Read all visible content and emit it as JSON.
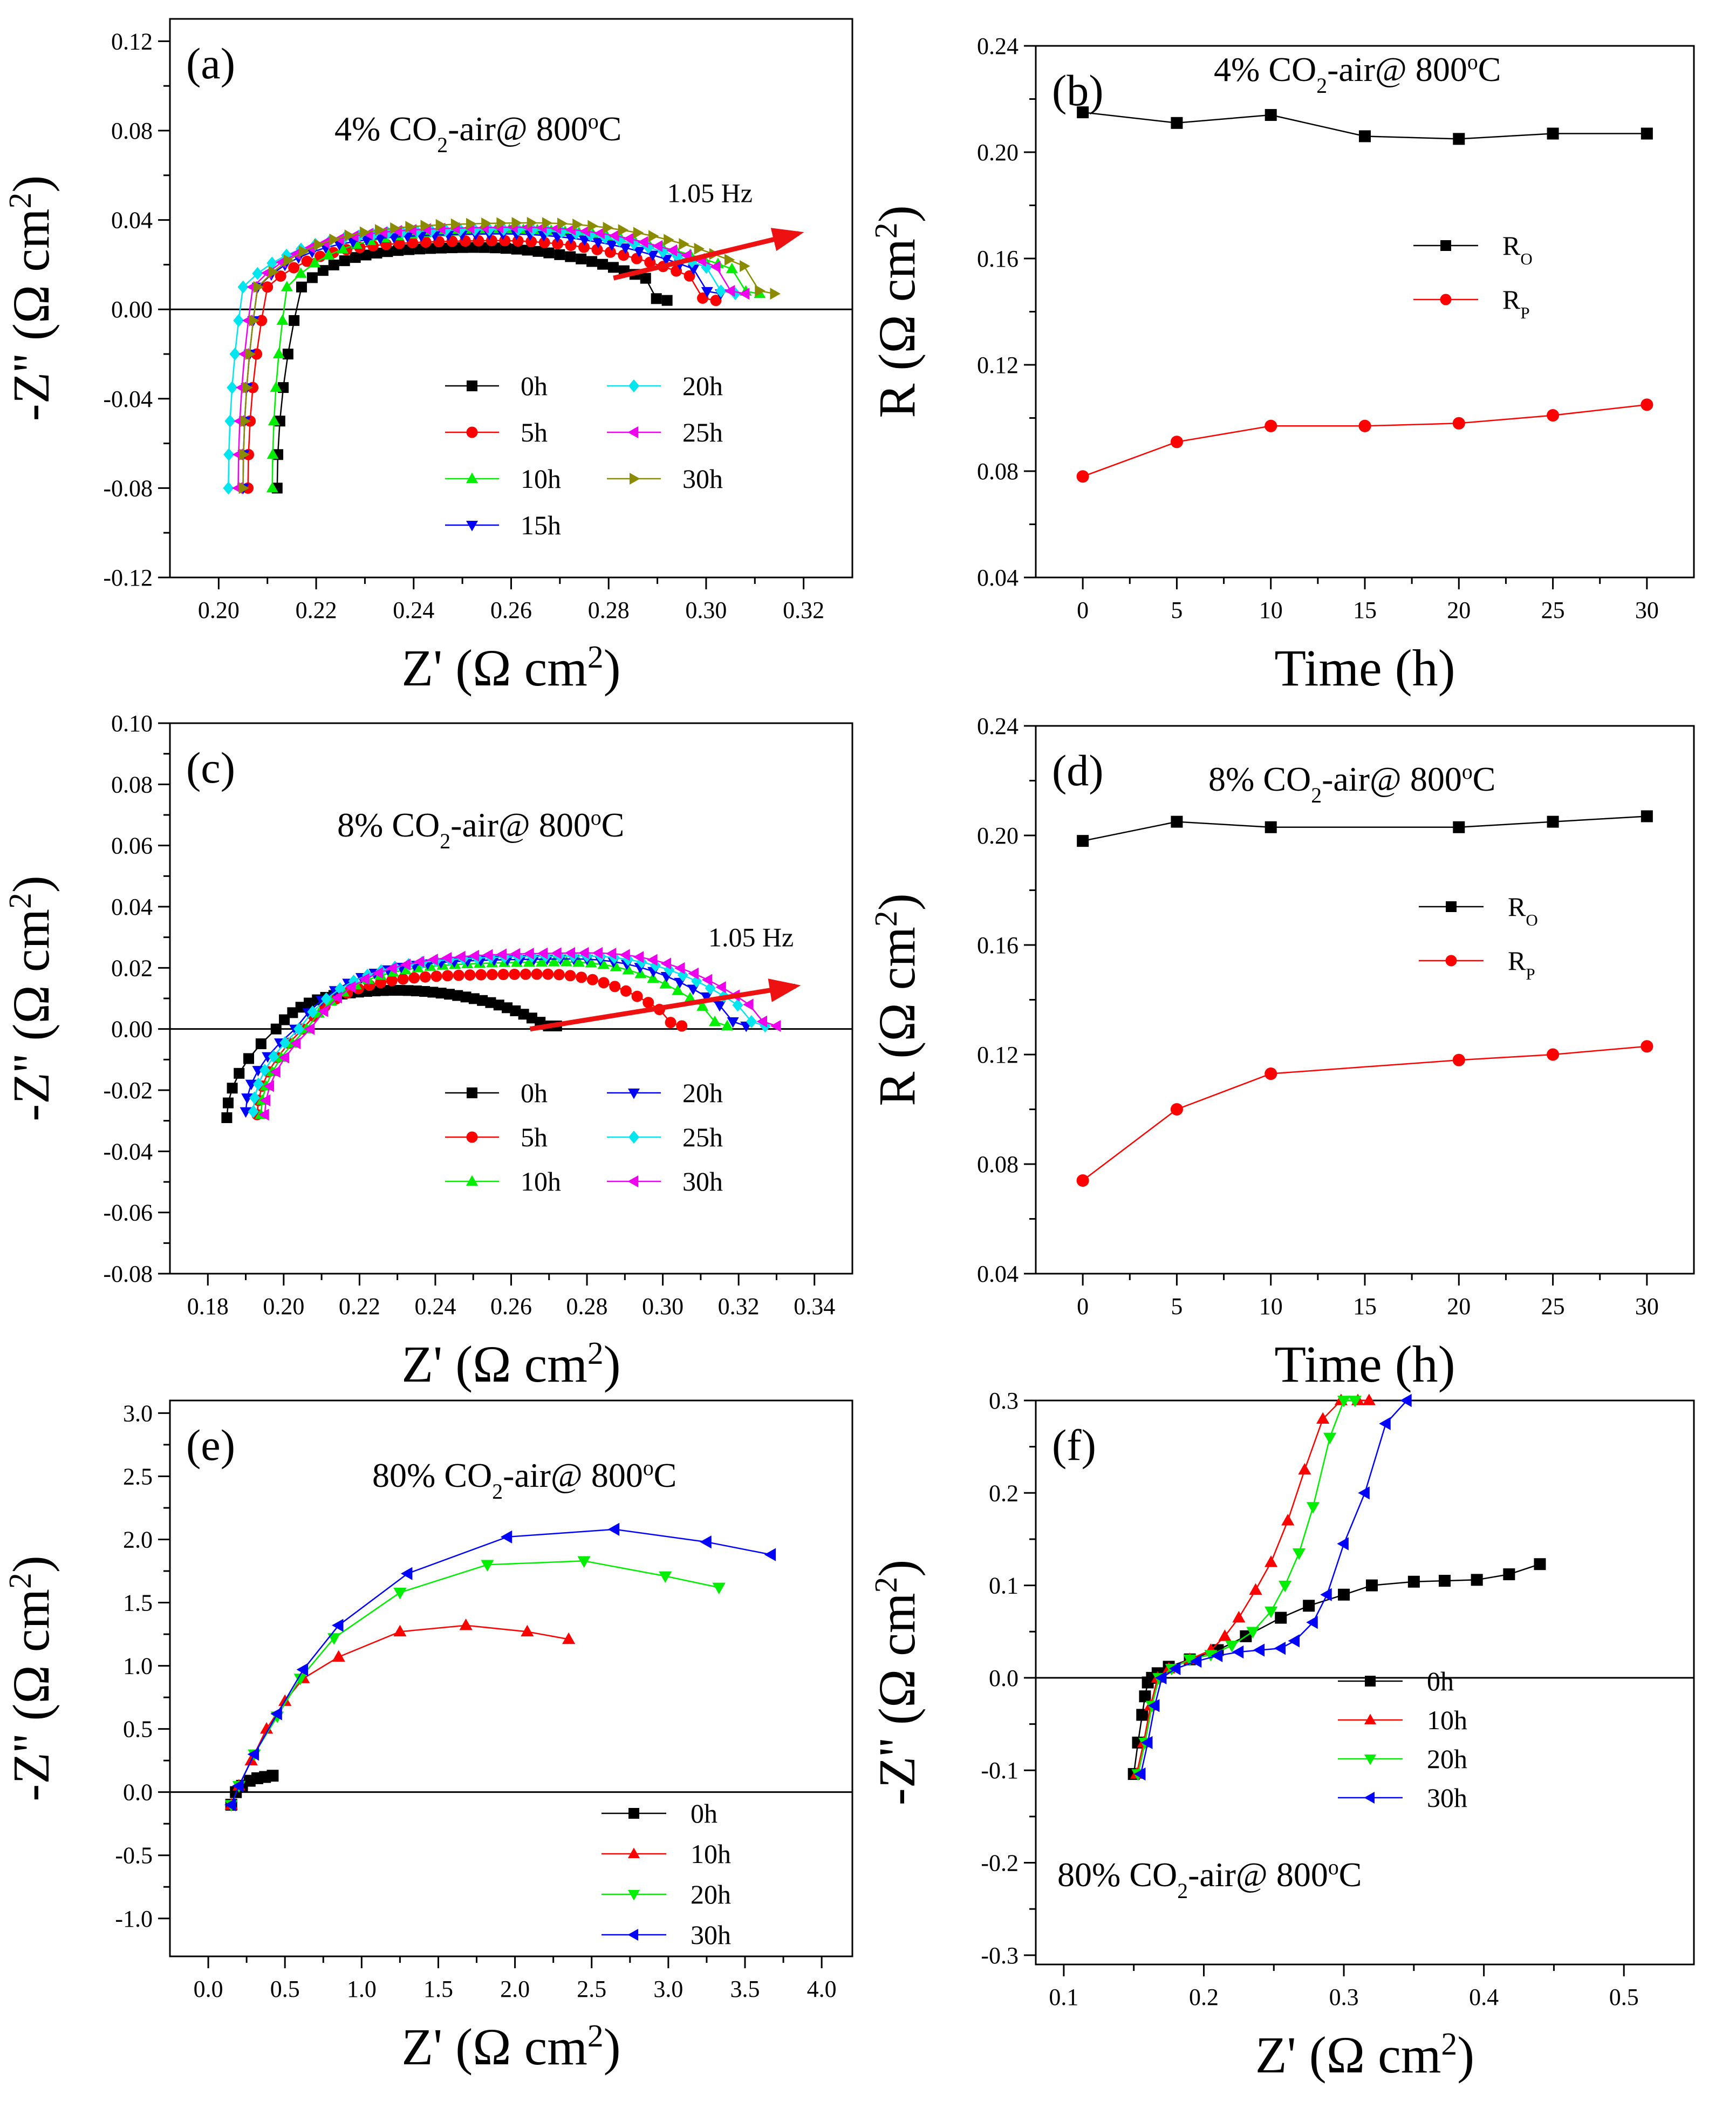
{
  "colors": {
    "s0": "#000000",
    "s5": "#ff0000",
    "s10": "#00ee00",
    "s15": "#0000ff",
    "s20": "#00e5ee",
    "s25": "#ee00ee",
    "s30": "#8b8b00",
    "arrow": "#ee1111",
    "axis": "#000000"
  },
  "chart_data": [
    {
      "id": "a",
      "type": "scatter",
      "panel_label": "(a)",
      "title_prefix": "4% CO",
      "title_sub": "2",
      "title_mid": "-air@ 800",
      "title_sup": "o",
      "title_end": "C",
      "xlabel": "Z' (Ω cm",
      "xlabel_sup": "2",
      "xlabel_end": ")",
      "ylabel": "-Z'' (Ω cm",
      "ylabel_sup": "2",
      "ylabel_end": ")",
      "xlim": [
        0.19,
        0.33
      ],
      "ylim": [
        -0.12,
        0.13
      ],
      "xticks": [
        0.2,
        0.22,
        0.24,
        0.26,
        0.28,
        0.3,
        0.32
      ],
      "yticks": [
        -0.12,
        -0.08,
        -0.04,
        0.0,
        0.04,
        0.08,
        0.12
      ],
      "tick_decimals_x": 2,
      "tick_decimals_y": 2,
      "legend_cols": 2,
      "legend_position": "center-bottom",
      "arrow": {
        "from": [
          0.281,
          0.014
        ],
        "to": [
          0.319,
          0.034
        ],
        "label": "1.05 Hz",
        "label_at": [
          0.292,
          0.048
        ]
      },
      "series": [
        {
          "name": "0h",
          "color": "s0",
          "marker": "square",
          "start": [
            0.212,
            -0.08
          ],
          "turn": [
            0.217,
            0.01
          ],
          "end": [
            0.292,
            0.0
          ],
          "peak": 0.028,
          "top_at": 0.25
        },
        {
          "name": "5h",
          "color": "s5",
          "marker": "circle",
          "start": [
            0.206,
            -0.08
          ],
          "turn": [
            0.21,
            0.01
          ],
          "end": [
            0.302,
            0.0
          ],
          "peak": 0.031,
          "top_at": 0.255
        },
        {
          "name": "10h",
          "color": "s10",
          "marker": "triangle-up",
          "start": [
            0.211,
            -0.08
          ],
          "turn": [
            0.214,
            0.01
          ],
          "end": [
            0.311,
            0.003
          ],
          "peak": 0.036,
          "top_at": 0.258
        },
        {
          "name": "15h",
          "color": "s15",
          "marker": "triangle-down",
          "start": [
            0.205,
            -0.08
          ],
          "turn": [
            0.208,
            0.01
          ],
          "end": [
            0.303,
            0.003
          ],
          "peak": 0.034,
          "top_at": 0.256
        },
        {
          "name": "20h",
          "color": "s20",
          "marker": "diamond",
          "start": [
            0.202,
            -0.08
          ],
          "turn": [
            0.205,
            0.01
          ],
          "end": [
            0.306,
            0.003
          ],
          "peak": 0.036,
          "top_at": 0.258
        },
        {
          "name": "25h",
          "color": "s25",
          "marker": "triangle-left",
          "start": [
            0.204,
            -0.08
          ],
          "turn": [
            0.207,
            0.01
          ],
          "end": [
            0.308,
            0.003
          ],
          "peak": 0.037,
          "top_at": 0.26
        },
        {
          "name": "30h",
          "color": "s30",
          "marker": "triangle-right",
          "start": [
            0.205,
            -0.08
          ],
          "turn": [
            0.208,
            0.01
          ],
          "end": [
            0.314,
            0.003
          ],
          "peak": 0.039,
          "top_at": 0.262
        }
      ]
    },
    {
      "id": "b",
      "type": "line",
      "panel_label": "(b)",
      "title_prefix": "4% CO",
      "title_sub": "2",
      "title_mid": "-air@ 800",
      "title_sup": "o",
      "title_end": "C",
      "xlabel": "Time (h)",
      "xlabel_sup": "",
      "xlabel_end": "",
      "ylabel": "R (Ω cm",
      "ylabel_sup": "2",
      "ylabel_end": ")",
      "xlim": [
        -2.5,
        32.5
      ],
      "ylim": [
        0.04,
        0.24
      ],
      "xticks": [
        0,
        5,
        10,
        15,
        20,
        25,
        30
      ],
      "yticks": [
        0.04,
        0.08,
        0.12,
        0.16,
        0.2,
        0.24
      ],
      "tick_decimals_x": 0,
      "tick_decimals_y": 2,
      "legend_position": "right-middle",
      "series": [
        {
          "name": "R",
          "name_sub": "O",
          "color": "s0",
          "marker": "square",
          "x": [
            0,
            5,
            10,
            15,
            20,
            25,
            30
          ],
          "y": [
            0.215,
            0.211,
            0.214,
            0.206,
            0.205,
            0.207,
            0.207
          ]
        },
        {
          "name": "R",
          "name_sub": "P",
          "color": "s5",
          "marker": "circle",
          "x": [
            0,
            5,
            10,
            15,
            20,
            25,
            30
          ],
          "y": [
            0.078,
            0.091,
            0.097,
            0.097,
            0.098,
            0.101,
            0.105
          ]
        }
      ]
    },
    {
      "id": "c",
      "type": "scatter",
      "panel_label": "(c)",
      "title_prefix": "8% CO",
      "title_sub": "2",
      "title_mid": "-air@ 800",
      "title_sup": "o",
      "title_end": "C",
      "xlabel": "Z' (Ω cm",
      "xlabel_sup": "2",
      "xlabel_end": ")",
      "ylabel": "-Z'' (Ω cm",
      "ylabel_sup": "2",
      "ylabel_end": ")",
      "xlim": [
        0.17,
        0.35
      ],
      "ylim": [
        -0.08,
        0.1
      ],
      "xticks": [
        0.18,
        0.2,
        0.22,
        0.24,
        0.26,
        0.28,
        0.3,
        0.32,
        0.34
      ],
      "yticks": [
        -0.08,
        -0.06,
        -0.04,
        -0.02,
        0.0,
        0.02,
        0.04,
        0.06,
        0.08,
        0.1
      ],
      "tick_decimals_x": 2,
      "tick_decimals_y": 2,
      "legend_cols": 2,
      "legend_position": "center-bottom",
      "arrow": {
        "from": [
          0.265,
          0.0
        ],
        "to": [
          0.335,
          0.014
        ],
        "label": "1.05 Hz",
        "label_at": [
          0.312,
          0.027
        ]
      },
      "series": [
        {
          "name": "0h",
          "color": "s0",
          "marker": "square",
          "start": [
            0.185,
            -0.029
          ],
          "turn": [
            0.198,
            0.0
          ],
          "end": [
            0.272,
            0.001
          ],
          "peak": 0.013,
          "top_at": 0.225,
          "shoulder": true
        },
        {
          "name": "5h",
          "color": "s5",
          "marker": "circle",
          "start": [
            0.193,
            -0.028
          ],
          "turn": [
            0.205,
            0.0
          ],
          "end": [
            0.305,
            0.001
          ],
          "peak": 0.018,
          "top_at": 0.268
        },
        {
          "name": "10h",
          "color": "s10",
          "marker": "triangle-up",
          "start": [
            0.194,
            -0.028
          ],
          "turn": [
            0.206,
            0.0
          ],
          "end": [
            0.317,
            0.001
          ],
          "peak": 0.022,
          "top_at": 0.274
        },
        {
          "name": "20h",
          "color": "s15",
          "marker": "triangle-down",
          "start": [
            0.19,
            -0.027
          ],
          "turn": [
            0.203,
            0.0
          ],
          "end": [
            0.322,
            0.001
          ],
          "peak": 0.023,
          "top_at": 0.276
        },
        {
          "name": "25h",
          "color": "s20",
          "marker": "diamond",
          "start": [
            0.192,
            -0.027
          ],
          "turn": [
            0.204,
            0.0
          ],
          "end": [
            0.327,
            0.001
          ],
          "peak": 0.024,
          "top_at": 0.278
        },
        {
          "name": "30h",
          "color": "s25",
          "marker": "triangle-left",
          "start": [
            0.195,
            -0.028
          ],
          "turn": [
            0.207,
            0.0
          ],
          "end": [
            0.33,
            0.001
          ],
          "peak": 0.025,
          "top_at": 0.28
        }
      ]
    },
    {
      "id": "d",
      "type": "line",
      "panel_label": "(d)",
      "title_prefix": "8% CO",
      "title_sub": "2",
      "title_mid": "-air@ 800",
      "title_sup": "o",
      "title_end": "C",
      "xlabel": "Time (h)",
      "xlabel_sup": "",
      "xlabel_end": "",
      "ylabel": "R (Ω cm",
      "ylabel_sup": "2",
      "ylabel_end": ")",
      "xlim": [
        -2.5,
        32.5
      ],
      "ylim": [
        0.04,
        0.24
      ],
      "xticks": [
        0,
        5,
        10,
        15,
        20,
        25,
        30
      ],
      "yticks": [
        0.04,
        0.08,
        0.12,
        0.16,
        0.2,
        0.24
      ],
      "tick_decimals_x": 0,
      "tick_decimals_y": 2,
      "legend_position": "right-middle",
      "series": [
        {
          "name": "R",
          "name_sub": "O",
          "color": "s0",
          "marker": "square",
          "x": [
            0,
            5,
            10,
            20,
            25,
            30
          ],
          "y": [
            0.198,
            0.205,
            0.203,
            0.203,
            0.205,
            0.207
          ]
        },
        {
          "name": "R",
          "name_sub": "P",
          "color": "s5",
          "marker": "circle",
          "x": [
            0,
            5,
            10,
            20,
            25,
            30
          ],
          "y": [
            0.074,
            0.1,
            0.113,
            0.118,
            0.12,
            0.123
          ]
        }
      ]
    },
    {
      "id": "e",
      "type": "line",
      "panel_label": "(e)",
      "title_prefix": "80% CO",
      "title_sub": "2",
      "title_mid": "-air@ 800",
      "title_sup": "o",
      "title_end": "C",
      "xlabel": "Z' (Ω cm",
      "xlabel_sup": "2",
      "xlabel_end": ")",
      "ylabel": "-Z'' (Ω cm",
      "ylabel_sup": "2",
      "ylabel_end": ")",
      "xlim": [
        -0.25,
        4.2
      ],
      "ylim": [
        -1.3,
        3.1
      ],
      "xticks": [
        0.0,
        0.5,
        1.0,
        1.5,
        2.0,
        2.5,
        3.0,
        3.5,
        4.0
      ],
      "yticks": [
        -1.0,
        -0.5,
        0.0,
        0.5,
        1.0,
        1.5,
        2.0,
        2.5,
        3.0
      ],
      "tick_decimals_x": 1,
      "tick_decimals_y": 1,
      "legend_position": "bottom-right",
      "series": [
        {
          "name": "0h",
          "color": "s0",
          "marker": "square",
          "x": [
            0.15,
            0.18,
            0.22,
            0.27,
            0.32,
            0.37,
            0.42
          ],
          "y": [
            -0.1,
            0.0,
            0.05,
            0.09,
            0.11,
            0.12,
            0.13
          ]
        },
        {
          "name": "10h",
          "color": "s5",
          "marker": "triangle-up",
          "x": [
            0.15,
            0.2,
            0.28,
            0.38,
            0.5,
            0.62,
            0.85,
            1.25,
            1.68,
            2.08,
            2.35
          ],
          "y": [
            -0.1,
            0.05,
            0.25,
            0.5,
            0.72,
            0.9,
            1.07,
            1.27,
            1.32,
            1.27,
            1.21
          ]
        },
        {
          "name": "20h",
          "color": "s10",
          "marker": "triangle-down",
          "x": [
            0.15,
            0.2,
            0.3,
            0.45,
            0.6,
            0.82,
            1.25,
            1.82,
            2.45,
            2.98,
            3.33
          ],
          "y": [
            -0.1,
            0.05,
            0.3,
            0.6,
            0.9,
            1.22,
            1.58,
            1.8,
            1.83,
            1.71,
            1.62
          ]
        },
        {
          "name": "30h",
          "color": "s15",
          "marker": "triangle-left",
          "x": [
            0.15,
            0.2,
            0.3,
            0.45,
            0.62,
            0.85,
            1.3,
            1.95,
            2.65,
            3.25,
            3.67
          ],
          "y": [
            -0.1,
            0.05,
            0.3,
            0.62,
            0.97,
            1.32,
            1.73,
            2.02,
            2.08,
            1.98,
            1.88
          ]
        }
      ]
    },
    {
      "id": "f",
      "type": "line",
      "panel_label": "(f)",
      "title_prefix": "80% CO",
      "title_sub": "2",
      "title_mid": "-air@ 800",
      "title_sup": "o",
      "title_end": "C",
      "xlabel": "Z' (Ω cm",
      "xlabel_sup": "2",
      "xlabel_end": ")",
      "ylabel": "-Z'' (Ω cm",
      "ylabel_sup": "2",
      "ylabel_end": ")",
      "xlim": [
        0.08,
        0.55
      ],
      "ylim": [
        -0.31,
        0.3
      ],
      "xticks": [
        0.1,
        0.2,
        0.3,
        0.4,
        0.5
      ],
      "yticks": [
        -0.3,
        -0.2,
        -0.1,
        0.0,
        0.1,
        0.2,
        0.3
      ],
      "tick_decimals_x": 1,
      "tick_decimals_y": 1,
      "legend_position": "right-lower",
      "series": [
        {
          "name": "0h",
          "color": "s0",
          "marker": "square",
          "x": [
            0.15,
            0.153,
            0.156,
            0.158,
            0.16,
            0.163,
            0.167,
            0.175,
            0.19,
            0.21,
            0.23,
            0.255,
            0.275,
            0.3,
            0.32,
            0.35,
            0.372,
            0.395,
            0.418,
            0.44
          ],
          "y": [
            -0.104,
            -0.07,
            -0.04,
            -0.02,
            -0.005,
            0.0,
            0.005,
            0.012,
            0.02,
            0.03,
            0.045,
            0.065,
            0.078,
            0.09,
            0.1,
            0.104,
            0.105,
            0.106,
            0.112,
            0.123
          ]
        },
        {
          "name": "10h",
          "color": "s5",
          "marker": "triangle-up",
          "x": [
            0.152,
            0.157,
            0.162,
            0.167,
            0.175,
            0.19,
            0.205,
            0.215,
            0.225,
            0.237,
            0.248,
            0.26,
            0.272,
            0.285,
            0.298,
            0.31,
            0.318
          ],
          "y": [
            -0.104,
            -0.07,
            -0.03,
            0.0,
            0.01,
            0.02,
            0.03,
            0.045,
            0.065,
            0.095,
            0.125,
            0.17,
            0.225,
            0.28,
            0.3,
            0.3,
            0.3
          ]
        },
        {
          "name": "20h",
          "color": "s10",
          "marker": "triangle-down",
          "x": [
            0.153,
            0.158,
            0.163,
            0.168,
            0.177,
            0.19,
            0.205,
            0.22,
            0.235,
            0.248,
            0.258,
            0.268,
            0.278,
            0.29,
            0.3,
            0.308
          ],
          "y": [
            -0.104,
            -0.07,
            -0.03,
            0.0,
            0.01,
            0.02,
            0.025,
            0.035,
            0.05,
            0.072,
            0.1,
            0.135,
            0.185,
            0.26,
            0.3,
            0.3
          ]
        },
        {
          "name": "30h",
          "color": "s15",
          "marker": "triangle-left",
          "x": [
            0.155,
            0.16,
            0.165,
            0.17,
            0.18,
            0.195,
            0.21,
            0.225,
            0.24,
            0.255,
            0.265,
            0.278,
            0.288,
            0.3,
            0.315,
            0.33,
            0.345
          ],
          "y": [
            -0.104,
            -0.07,
            -0.03,
            0.0,
            0.01,
            0.018,
            0.024,
            0.028,
            0.03,
            0.032,
            0.04,
            0.06,
            0.09,
            0.145,
            0.2,
            0.275,
            0.3
          ]
        }
      ]
    }
  ]
}
